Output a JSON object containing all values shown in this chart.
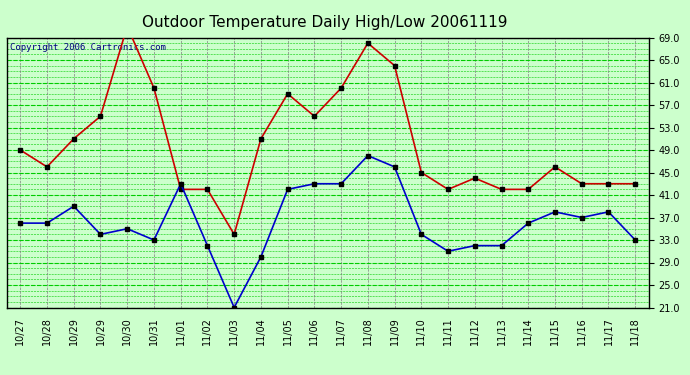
{
  "title": "Outdoor Temperature Daily High/Low 20061119",
  "copyright": "Copyright 2006 Cartronics.com",
  "x_labels": [
    "10/27",
    "10/28",
    "10/29",
    "10/29",
    "10/30",
    "10/31",
    "11/01",
    "11/02",
    "11/03",
    "11/04",
    "11/05",
    "11/06",
    "11/07",
    "11/08",
    "11/09",
    "11/10",
    "11/11",
    "11/12",
    "11/13",
    "11/14",
    "11/15",
    "11/16",
    "11/17",
    "11/18"
  ],
  "high_temps": [
    49,
    46,
    51,
    55,
    71,
    60,
    42,
    42,
    34,
    51,
    59,
    55,
    60,
    68,
    64,
    45,
    42,
    44,
    42,
    42,
    46,
    43,
    43,
    43
  ],
  "low_temps": [
    36,
    36,
    39,
    34,
    35,
    33,
    43,
    32,
    21,
    30,
    42,
    43,
    43,
    48,
    46,
    34,
    31,
    32,
    32,
    36,
    38,
    37,
    38,
    33
  ],
  "high_color": "#cc0000",
  "low_color": "#0000cc",
  "bg_color": "#ccffcc",
  "plot_bg_color": "#ccffcc",
  "grid_major_color": "#00cc00",
  "grid_minor_color": "#00cc00",
  "vgrid_color": "#808080",
  "title_color": "#000000",
  "border_color": "#000000",
  "copyright_color": "#000080",
  "ylim_min": 21.0,
  "ylim_max": 69.0,
  "yticks": [
    21.0,
    25.0,
    29.0,
    33.0,
    37.0,
    41.0,
    45.0,
    49.0,
    53.0,
    57.0,
    61.0,
    65.0,
    69.0
  ],
  "marker": "s",
  "marker_size": 3,
  "line_width": 1.2,
  "title_fontsize": 11,
  "tick_fontsize": 7,
  "copyright_fontsize": 6.5
}
